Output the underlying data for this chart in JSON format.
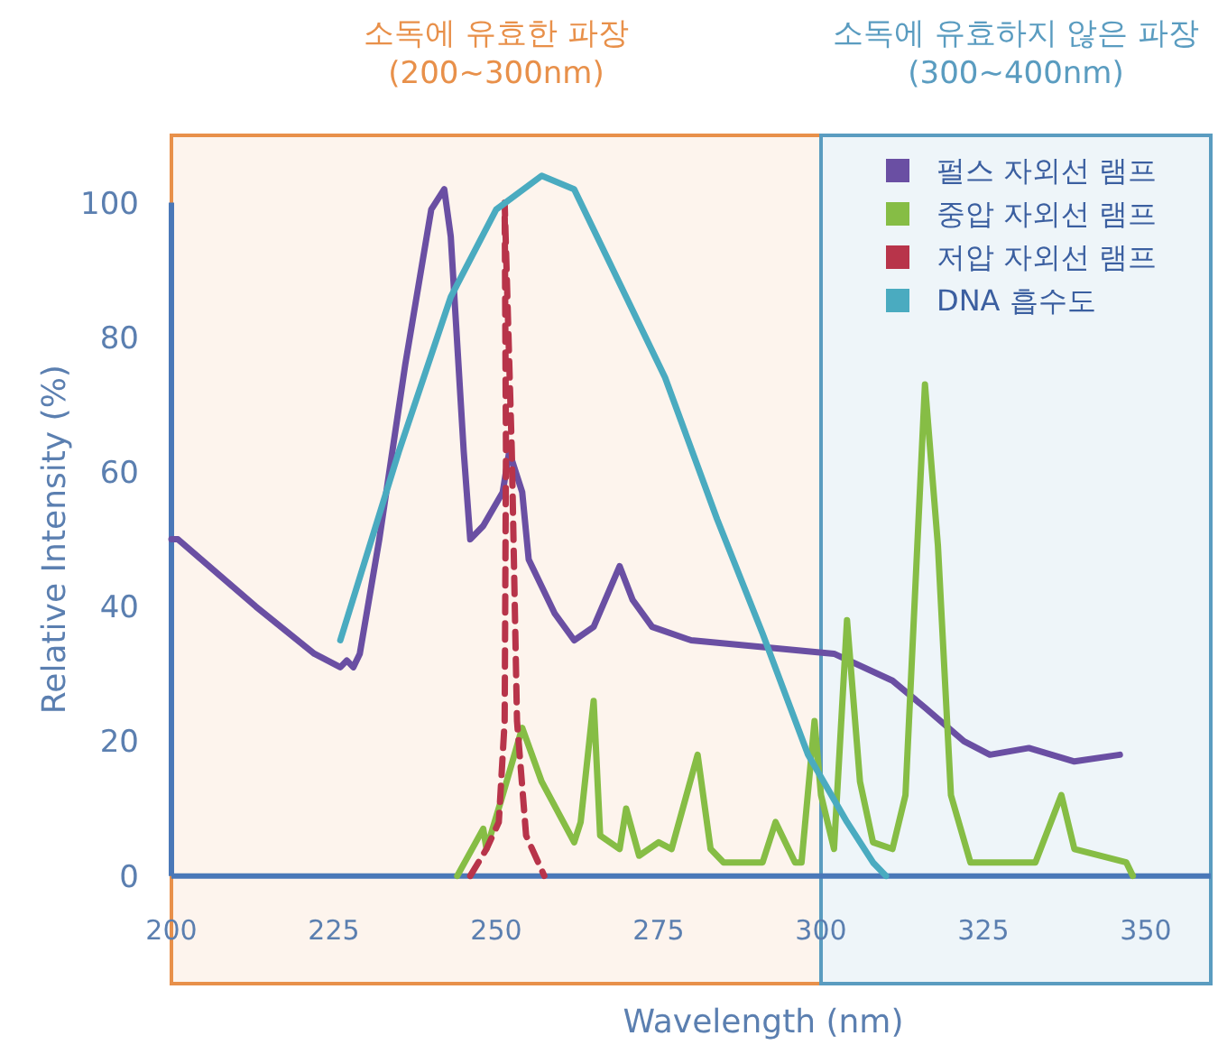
{
  "chart_data": {
    "type": "line",
    "xlabel": "Wavelength (nm)",
    "ylabel": "Relative Intensity (%)",
    "xlim": [
      200,
      360
    ],
    "ylim": [
      -16,
      110
    ],
    "xticks": [
      200,
      225,
      250,
      275,
      300,
      325,
      350
    ],
    "yticks": [
      0,
      20,
      40,
      60,
      80,
      100
    ],
    "legend": "top right",
    "bands": [
      {
        "axis": "x",
        "from": 200,
        "to": 300,
        "label": "소독에 유효한 파장\n(200~300nm)",
        "color": "#e8904a"
      },
      {
        "axis": "x",
        "from": 300,
        "to": 360,
        "label": "소독에 유효하지 않은 파장\n(300~400nm)",
        "color": "#5a9cc0"
      }
    ],
    "series": [
      {
        "name": "펄스 자외선 램프",
        "color": "#6a4fa3",
        "x": [
          200,
          201,
          213,
          222,
          226,
          227,
          228,
          229,
          232,
          236,
          240,
          242,
          243,
          245,
          246,
          248,
          251,
          252,
          254,
          255,
          259,
          262,
          265,
          269,
          271,
          274,
          280,
          291,
          302,
          311,
          316,
          322,
          326,
          332,
          339,
          346
        ],
        "values": [
          50,
          50,
          40,
          33,
          31,
          32,
          31,
          33,
          50,
          76,
          99,
          102,
          95,
          63,
          50,
          52,
          57,
          63,
          57,
          47,
          39,
          35,
          37,
          46,
          41,
          37,
          35,
          34,
          33,
          29,
          25,
          20,
          18,
          19,
          17,
          18
        ]
      },
      {
        "name": "중압 자외선 램프",
        "color": "#86bd45",
        "x": [
          244,
          248,
          248.5,
          251,
          254,
          257,
          262,
          263,
          265,
          266,
          269,
          270,
          272,
          275,
          277,
          281,
          283,
          285,
          291,
          293,
          296,
          297,
          299,
          300,
          302,
          304,
          306,
          308,
          311,
          313,
          316,
          318,
          320,
          323,
          333,
          337,
          339,
          347,
          348
        ],
        "values": [
          0,
          7,
          4,
          12,
          22,
          14,
          5,
          8,
          26,
          6,
          4,
          10,
          3,
          5,
          4,
          18,
          4,
          2,
          2,
          8,
          2,
          2,
          23,
          12,
          4,
          38,
          14,
          5,
          4,
          12,
          73,
          49,
          12,
          2,
          2,
          12,
          4,
          2,
          0
        ]
      },
      {
        "name": "저압 자외선 램프",
        "color": "#b8344a",
        "line_style": "dashed",
        "x": [
          246,
          248.5,
          250.4,
          251.3,
          251.5,
          251.3,
          252.4,
          253.2,
          254.6,
          257.4
        ],
        "values": [
          0,
          4,
          8,
          23,
          63,
          100,
          63,
          23,
          6,
          0
        ]
      },
      {
        "name": "DNA 흡수도",
        "color": "#4aabc0",
        "x": [
          226,
          235,
          243,
          250,
          257,
          262,
          267,
          276,
          284,
          291,
          298,
          304,
          308,
          310
        ],
        "values": [
          35,
          63,
          86,
          99,
          104,
          102,
          92,
          74,
          53,
          36,
          18,
          8,
          2,
          0
        ]
      }
    ]
  }
}
